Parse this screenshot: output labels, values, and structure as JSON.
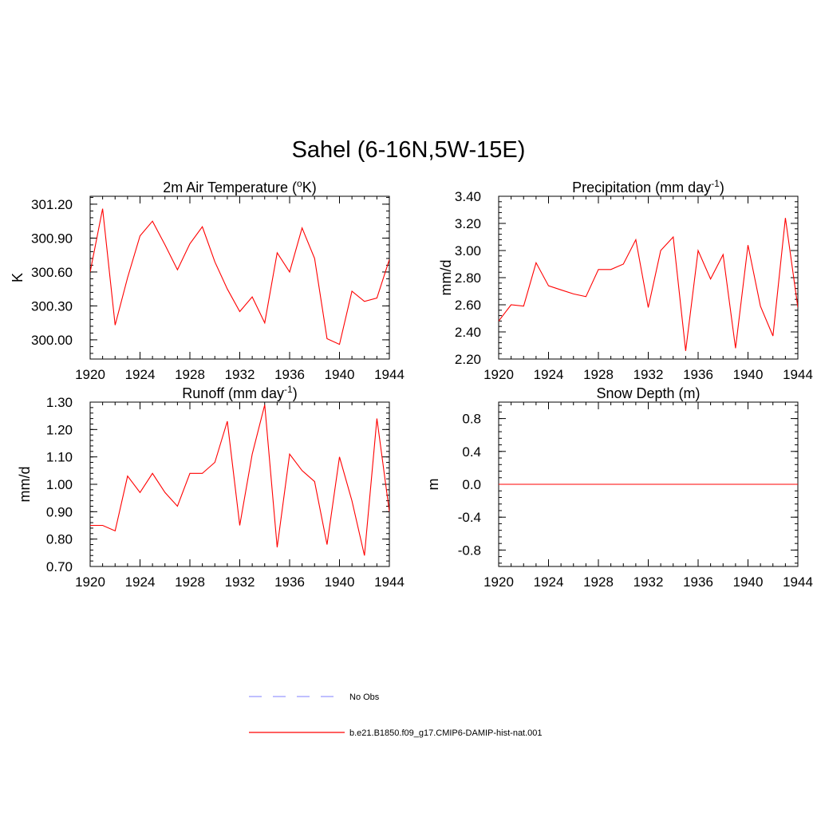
{
  "figure": {
    "title": "Sahel (6-16N,5W-15E)"
  },
  "chart_data": [
    {
      "type": "line",
      "title": "2m Air Temperature (oK)",
      "title_parts": [
        "2m Air Temperature (",
        "o",
        "K)"
      ],
      "ylabel": "K",
      "xlim": [
        1920,
        1944
      ],
      "ylim": [
        299.83,
        301.27
      ],
      "x_ticks": [
        1920,
        1924,
        1928,
        1932,
        1936,
        1940,
        1944
      ],
      "x_tick_labels": [
        "1920",
        "1924",
        "1928",
        "1932",
        "1936",
        "1940",
        "1944"
      ],
      "y_ticks": [
        300.0,
        300.3,
        300.6,
        300.9,
        301.2
      ],
      "y_tick_labels": [
        "300.00",
        "300.30",
        "300.60",
        "300.90",
        "301.20"
      ],
      "grid": false,
      "x": [
        1920,
        1921,
        1922,
        1923,
        1924,
        1925,
        1926,
        1927,
        1928,
        1929,
        1930,
        1931,
        1932,
        1933,
        1934,
        1935,
        1936,
        1937,
        1938,
        1939,
        1940,
        1941,
        1942,
        1943,
        1944
      ],
      "series": [
        {
          "values": [
            300.6,
            301.16,
            300.13,
            300.55,
            300.92,
            301.05,
            300.84,
            300.62,
            300.85,
            301.0,
            300.69,
            300.45,
            300.25,
            300.38,
            300.15,
            300.77,
            300.6,
            300.99,
            300.72,
            300.01,
            299.96,
            300.43,
            300.34,
            300.37,
            300.71
          ],
          "color": "#ff0000"
        }
      ]
    },
    {
      "type": "line",
      "title": "Precipitation (mm day-1)",
      "title_parts": [
        "Precipitation (mm day",
        "-1",
        ")"
      ],
      "ylabel": "mm/d",
      "xlim": [
        1920,
        1944
      ],
      "ylim": [
        2.2,
        3.4
      ],
      "x_ticks": [
        1920,
        1924,
        1928,
        1932,
        1936,
        1940,
        1944
      ],
      "x_tick_labels": [
        "1920",
        "1924",
        "1928",
        "1932",
        "1936",
        "1940",
        "1944"
      ],
      "y_ticks": [
        2.2,
        2.4,
        2.6,
        2.8,
        3.0,
        3.2,
        3.4
      ],
      "y_tick_labels": [
        "2.20",
        "2.40",
        "2.60",
        "2.80",
        "3.00",
        "3.20",
        "3.40"
      ],
      "grid": false,
      "x": [
        1920,
        1921,
        1922,
        1923,
        1924,
        1925,
        1926,
        1927,
        1928,
        1929,
        1930,
        1931,
        1932,
        1933,
        1934,
        1935,
        1936,
        1937,
        1938,
        1939,
        1940,
        1941,
        1942,
        1943,
        1944
      ],
      "series": [
        {
          "values": [
            2.48,
            2.6,
            2.59,
            2.91,
            2.74,
            2.71,
            2.68,
            2.66,
            2.86,
            2.86,
            2.9,
            3.08,
            2.58,
            3.0,
            3.1,
            2.26,
            3.0,
            2.79,
            2.97,
            2.28,
            3.04,
            2.59,
            2.37,
            3.24,
            2.58
          ],
          "color": "#ff0000"
        }
      ]
    },
    {
      "type": "line",
      "title": "Runoff (mm day-1)",
      "title_parts": [
        "Runoff (mm day",
        "-1",
        ")"
      ],
      "ylabel": "mm/d",
      "xlim": [
        1920,
        1944
      ],
      "ylim": [
        0.7,
        1.3
      ],
      "x_ticks": [
        1920,
        1924,
        1928,
        1932,
        1936,
        1940,
        1944
      ],
      "x_tick_labels": [
        "1920",
        "1924",
        "1928",
        "1932",
        "1936",
        "1940",
        "1944"
      ],
      "y_ticks": [
        0.7,
        0.8,
        0.9,
        1.0,
        1.1,
        1.2,
        1.3
      ],
      "y_tick_labels": [
        "0.70",
        "0.80",
        "0.90",
        "1.00",
        "1.10",
        "1.20",
        "1.30"
      ],
      "grid": false,
      "x": [
        1920,
        1921,
        1922,
        1923,
        1924,
        1925,
        1926,
        1927,
        1928,
        1929,
        1930,
        1931,
        1932,
        1933,
        1934,
        1935,
        1936,
        1937,
        1938,
        1939,
        1940,
        1941,
        1942,
        1943,
        1944
      ],
      "series": [
        {
          "values": [
            0.85,
            0.85,
            0.83,
            1.03,
            0.97,
            1.04,
            0.97,
            0.92,
            1.04,
            1.04,
            1.08,
            1.23,
            0.85,
            1.11,
            1.29,
            0.77,
            1.11,
            1.05,
            1.01,
            0.78,
            1.1,
            0.94,
            0.74,
            1.24,
            0.9
          ],
          "color": "#ff0000"
        }
      ]
    },
    {
      "type": "line",
      "title": "Snow Depth (m)",
      "title_parts": [
        "Snow Depth (m)",
        "",
        ""
      ],
      "ylabel": "m",
      "xlim": [
        1920,
        1944
      ],
      "ylim": [
        -1.0,
        1.0
      ],
      "x_ticks": [
        1920,
        1924,
        1928,
        1932,
        1936,
        1940,
        1944
      ],
      "x_tick_labels": [
        "1920",
        "1924",
        "1928",
        "1932",
        "1936",
        "1940",
        "1944"
      ],
      "y_ticks": [
        -0.8,
        -0.4,
        0.0,
        0.4,
        0.8
      ],
      "y_tick_labels": [
        "-0.8",
        "-0.4",
        "0.0",
        "0.4",
        "0.8"
      ],
      "grid": false,
      "x": [
        1920,
        1921,
        1922,
        1923,
        1924,
        1925,
        1926,
        1927,
        1928,
        1929,
        1930,
        1931,
        1932,
        1933,
        1934,
        1935,
        1936,
        1937,
        1938,
        1939,
        1940,
        1941,
        1942,
        1943,
        1944
      ],
      "series": [
        {
          "values": [
            0,
            0,
            0,
            0,
            0,
            0,
            0,
            0,
            0,
            0,
            0,
            0,
            0,
            0,
            0,
            0,
            0,
            0,
            0,
            0,
            0,
            0,
            0,
            0,
            0
          ],
          "color": "#ff0000"
        }
      ]
    }
  ],
  "legend": {
    "items": [
      {
        "label": "No Obs",
        "color": "#9999ff",
        "dash": "dashed"
      },
      {
        "label": "b.e21.B1850.f09_g17.CMIP6-DAMIP-hist-nat.001",
        "color": "#ff0000",
        "dash": "solid"
      }
    ]
  }
}
